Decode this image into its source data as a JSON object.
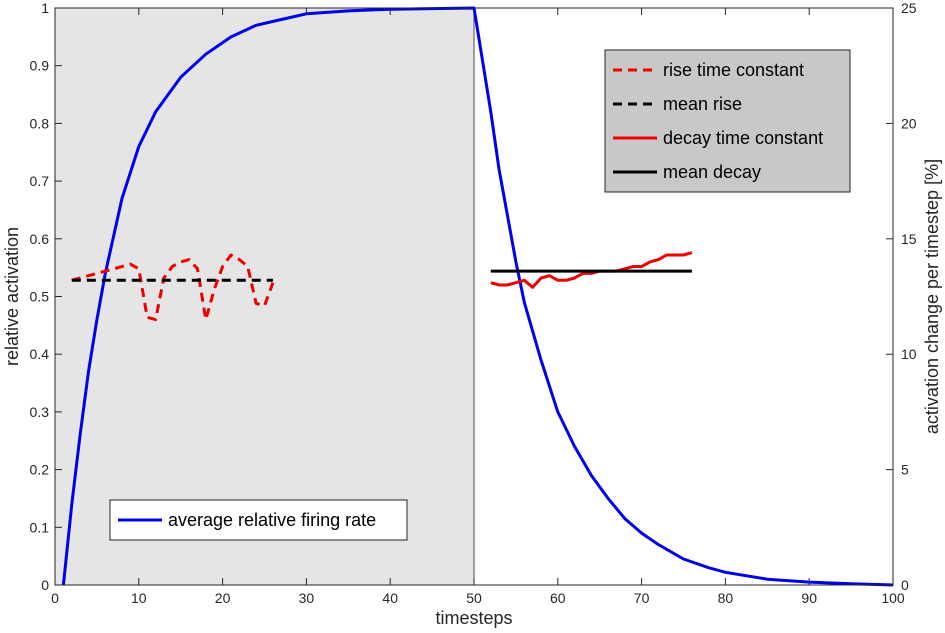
{
  "chart_data": {
    "type": "line",
    "x_axis": {
      "label": "timesteps",
      "range": [
        0,
        100
      ],
      "ticks": [
        0,
        10,
        20,
        30,
        40,
        50,
        60,
        70,
        80,
        90,
        100
      ]
    },
    "y_left": {
      "label": "relative activation",
      "range": [
        0,
        1
      ],
      "ticks": [
        "0",
        "0.1",
        "0.2",
        "0.3",
        "0.4",
        "0.5",
        "0.6",
        "0.7",
        "0.8",
        "0.9",
        "1"
      ]
    },
    "y_right": {
      "label": "activation change per timestep [%]",
      "range": [
        0,
        25
      ],
      "ticks": [
        0,
        5,
        10,
        15,
        20,
        25
      ]
    },
    "shaded_region": {
      "x": [
        0,
        50
      ],
      "color": "#e5e5e5"
    },
    "grid": false,
    "series": [
      {
        "name": "average relative firing rate",
        "axis": "left",
        "color": "#0000ee",
        "style": "solid",
        "x": [
          1,
          2,
          3,
          4,
          5,
          6,
          8,
          10,
          12,
          15,
          18,
          21,
          24,
          27,
          30,
          35,
          40,
          45,
          50,
          51,
          52,
          53,
          54,
          55,
          56,
          58,
          60,
          62,
          64,
          66,
          68,
          70,
          72,
          75,
          78,
          80,
          85,
          90,
          95,
          100
        ],
        "values": [
          0,
          0.14,
          0.26,
          0.37,
          0.46,
          0.54,
          0.67,
          0.76,
          0.82,
          0.88,
          0.92,
          0.95,
          0.97,
          0.98,
          0.99,
          0.995,
          0.998,
          0.999,
          1.0,
          0.91,
          0.82,
          0.72,
          0.64,
          0.56,
          0.49,
          0.39,
          0.3,
          0.24,
          0.19,
          0.15,
          0.115,
          0.09,
          0.07,
          0.045,
          0.03,
          0.022,
          0.01,
          0.005,
          0.002,
          0.0
        ]
      },
      {
        "name": "rise time constant",
        "axis": "right",
        "color": "#ee0000",
        "style": "dashed",
        "x": [
          2,
          3,
          4,
          5,
          6,
          7,
          8,
          9,
          10,
          11,
          12,
          13,
          14,
          15,
          16,
          17,
          18,
          19,
          20,
          21,
          22,
          23,
          24,
          25,
          26
        ],
        "values": [
          13.2,
          13.3,
          13.4,
          13.5,
          13.6,
          13.7,
          13.8,
          13.9,
          13.7,
          11.6,
          11.5,
          13.3,
          13.8,
          14.0,
          14.1,
          13.7,
          11.5,
          12.8,
          13.8,
          14.3,
          14.1,
          13.8,
          12.2,
          12.1,
          13.1
        ]
      },
      {
        "name": "mean rise",
        "axis": "right",
        "color": "#000000",
        "style": "dashed",
        "x": [
          2,
          26
        ],
        "values": [
          13.2,
          13.2
        ]
      },
      {
        "name": "decay time constant",
        "axis": "right",
        "color": "#ee0000",
        "style": "solid",
        "x": [
          52,
          53,
          54,
          55,
          56,
          57,
          58,
          59,
          60,
          61,
          62,
          63,
          64,
          65,
          66,
          67,
          68,
          69,
          70,
          71,
          72,
          73,
          74,
          75,
          76
        ],
        "values": [
          13.1,
          13.0,
          13.0,
          13.1,
          13.2,
          12.9,
          13.3,
          13.4,
          13.2,
          13.2,
          13.3,
          13.5,
          13.5,
          13.6,
          13.6,
          13.6,
          13.7,
          13.8,
          13.8,
          14.0,
          14.1,
          14.3,
          14.3,
          14.3,
          14.4
        ]
      },
      {
        "name": "mean decay",
        "axis": "right",
        "color": "#000000",
        "style": "solid",
        "x": [
          52,
          76
        ],
        "values": [
          13.6,
          13.6
        ]
      }
    ],
    "legends": [
      {
        "placement": "top-right",
        "entries": [
          "rise time constant",
          "mean rise",
          "decay time constant",
          "mean decay"
        ],
        "background": "#c8c8c8"
      },
      {
        "placement": "bottom-left",
        "entries": [
          "average relative firing rate"
        ],
        "background": "#ffffff"
      }
    ]
  }
}
